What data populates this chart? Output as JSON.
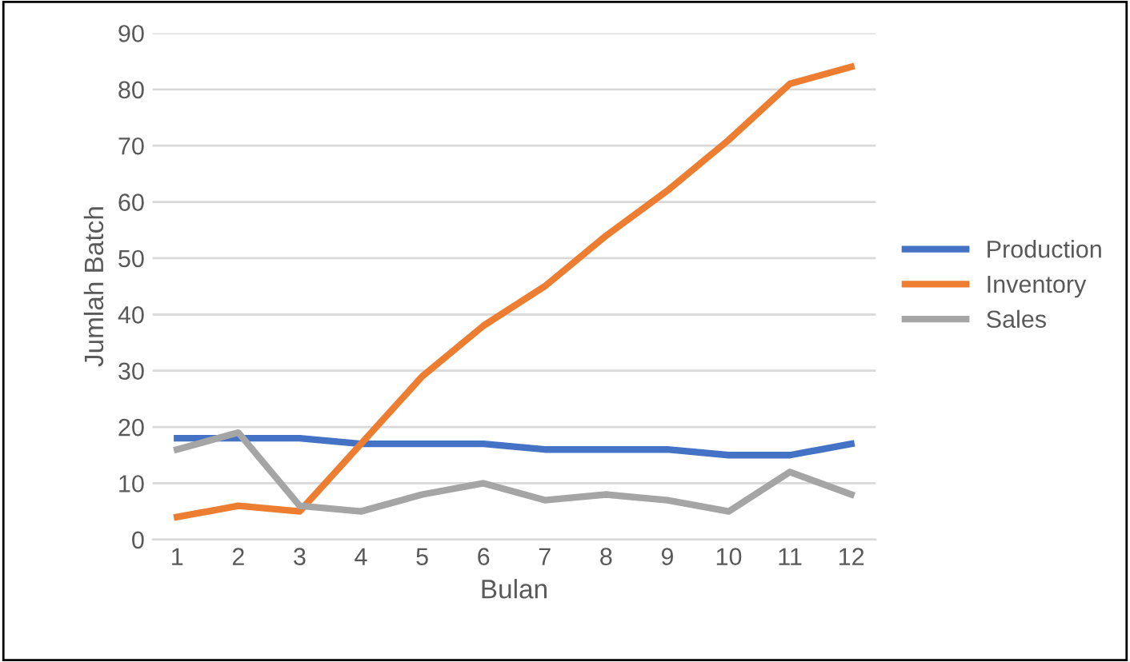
{
  "chart_data": {
    "type": "line",
    "xlabel": "Bulan",
    "ylabel": "Jumlah Batch",
    "categories": [
      "1",
      "2",
      "3",
      "4",
      "5",
      "6",
      "7",
      "8",
      "9",
      "10",
      "11",
      "12"
    ],
    "series": [
      {
        "name": "Production",
        "color": "#4472c4",
        "values": [
          18,
          18,
          18,
          17,
          17,
          17,
          16,
          16,
          16,
          15,
          15,
          17
        ]
      },
      {
        "name": "Inventory",
        "color": "#ed7d31",
        "values": [
          4,
          6,
          5,
          17,
          29,
          38,
          45,
          54,
          62,
          71,
          81,
          84
        ]
      },
      {
        "name": "Sales",
        "color": "#a5a5a5",
        "values": [
          16,
          19,
          6,
          5,
          8,
          10,
          7,
          8,
          7,
          5,
          12,
          8
        ]
      }
    ],
    "ylim": [
      0,
      90
    ],
    "yticks": [
      0,
      10,
      20,
      30,
      40,
      50,
      60,
      70,
      80,
      90
    ],
    "grid": "y",
    "legend": "right",
    "marker": "none",
    "line_style": "solid"
  }
}
